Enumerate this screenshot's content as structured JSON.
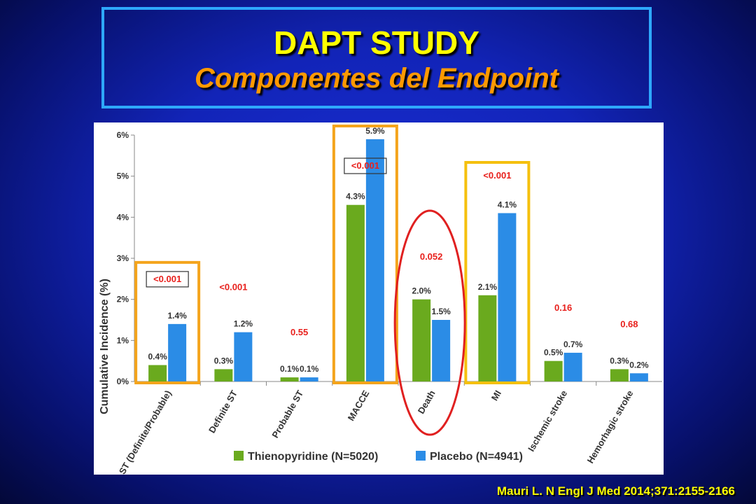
{
  "title": "DAPT STUDY",
  "subtitle": "Componentes del Endpoint",
  "citation": "Mauri L. N Engl J Med 2014;371:2155-2166",
  "colors": {
    "thienopyridine": "#6aaa1e",
    "placebo": "#2b8ce6",
    "pvalue": "#e8201c",
    "highlight_box": "#f4a41c",
    "highlight_box_mi": "#f5c00e",
    "death_ellipse": "#e02020"
  },
  "chart_data": {
    "type": "bar",
    "ylabel": "Cumulative Incidence (%)",
    "ylim": [
      0,
      6
    ],
    "yticks": [
      "0%",
      "1%",
      "2%",
      "3%",
      "4%",
      "5%",
      "6%"
    ],
    "categories": [
      "ST (Definite/Probable)",
      "Definite ST",
      "Probable ST",
      "MACCE",
      "Death",
      "MI",
      "Ischemic stroke",
      "Hemorhagic stroke"
    ],
    "series": [
      {
        "name": "Thienopyridine (N=5020)",
        "values": [
          0.4,
          0.3,
          0.1,
          4.3,
          2.0,
          2.1,
          0.5,
          0.3
        ],
        "labels": [
          "0.4%",
          "0.3%",
          "0.1%",
          "4.3%",
          "2.0%",
          "2.1%",
          "0.5%",
          "0.3%"
        ]
      },
      {
        "name": "Placebo (N=4941)",
        "values": [
          1.4,
          1.2,
          0.1,
          5.9,
          1.5,
          4.1,
          0.7,
          0.2
        ],
        "labels": [
          "1.4%",
          "1.2%",
          "0.1%",
          "5.9%",
          "1.5%",
          "4.1%",
          "0.7%",
          "0.2%"
        ]
      }
    ],
    "pvalues": [
      "<0.001",
      "<0.001",
      "0.55",
      "<0.001",
      "0.052",
      "<0.001",
      "0.16",
      "0.68"
    ],
    "pvalue_boxed": [
      true,
      false,
      false,
      true,
      false,
      false,
      false,
      false
    ],
    "highlighted_categories": [
      "ST (Definite/Probable)",
      "MACCE",
      "MI"
    ],
    "circled_category": "Death",
    "legend_position": "bottom"
  }
}
